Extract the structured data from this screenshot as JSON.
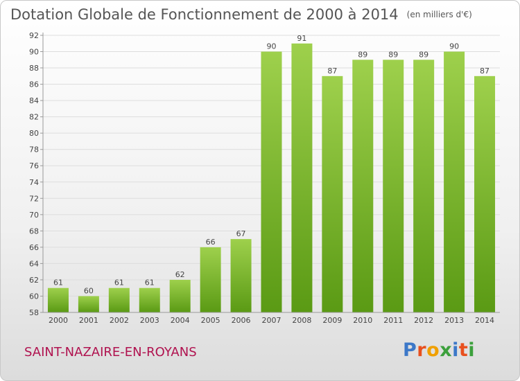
{
  "header": {
    "title": "Dotation Globale de Fonctionnement de 2000 à 2014",
    "unit": "(en milliers d'€)"
  },
  "footer": {
    "commune": "SAINT-NAZAIRE-EN-ROYANS",
    "logo": {
      "letters": [
        "P",
        "r",
        "o",
        "x",
        "i",
        "t",
        "i"
      ],
      "colors": [
        "#3c78c8",
        "#e8501e",
        "#f0a000",
        "#3ca03c",
        "#3c78c8",
        "#e8501e",
        "#3ca03c"
      ]
    }
  },
  "colors": {
    "bar_top": "#9ed04c",
    "bar_bottom": "#5a9a14",
    "grid": "#dddddd",
    "axis": "#999999"
  },
  "chart_data": {
    "type": "bar",
    "title": "Dotation Globale de Fonctionnement de 2000 à 2014",
    "subtitle": "(en milliers d'€)",
    "categories": [
      "2000",
      "2001",
      "2002",
      "2003",
      "2004",
      "2005",
      "2006",
      "2007",
      "2008",
      "2009",
      "2010",
      "2011",
      "2012",
      "2013",
      "2014"
    ],
    "values": [
      61,
      60,
      61,
      61,
      62,
      66,
      67,
      90,
      91,
      87,
      89,
      89,
      89,
      90,
      87
    ],
    "ylim": [
      58,
      92
    ],
    "yticks": [
      58,
      60,
      62,
      64,
      66,
      68,
      70,
      72,
      74,
      76,
      78,
      80,
      82,
      84,
      86,
      88,
      90,
      92
    ],
    "grid": true,
    "legend": "none"
  }
}
